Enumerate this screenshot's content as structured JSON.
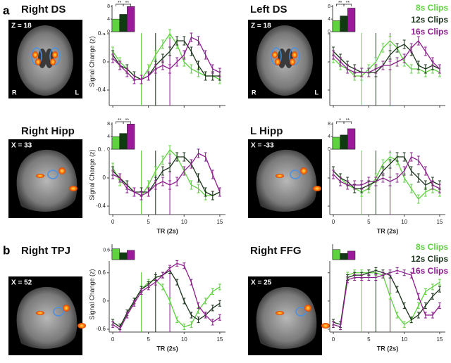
{
  "panel_labels": [
    "a",
    "b"
  ],
  "chart_data": [
    {
      "type": "line",
      "title": "Right DS",
      "slice_label": "Z = 18",
      "orientation": [
        "R",
        "L"
      ],
      "ylabel": "Signal Change (z)",
      "x": [
        0,
        1,
        2,
        3,
        4,
        5,
        6,
        7,
        8,
        9,
        10,
        11,
        12,
        13,
        14,
        15
      ],
      "xlim": [
        -0.5,
        15.8
      ],
      "xticks": [
        0,
        5,
        10,
        15
      ],
      "xtick_labels": false,
      "ylim": [
        -0.62,
        0.83
      ],
      "yticks": [
        -0.4,
        0,
        0.4
      ],
      "ytick_labels": true,
      "event_lines": [
        4,
        6,
        8
      ],
      "series": [
        {
          "color": "#5fd23f",
          "values": [
            0.15,
            0.0,
            -0.1,
            -0.2,
            -0.25,
            -0.1,
            0.1,
            0.25,
            0.4,
            0.25,
            0.0,
            -0.1,
            -0.15,
            -0.2,
            -0.2,
            -0.25
          ],
          "errors": [
            0.06,
            0.06,
            0.06,
            0.06,
            0.06,
            0.06,
            0.06,
            0.06,
            0.06,
            0.06,
            0.06,
            0.06,
            0.06,
            0.06,
            0.06,
            0.06
          ]
        },
        {
          "color": "#1c331c",
          "values": [
            0.1,
            -0.05,
            -0.1,
            -0.2,
            -0.25,
            -0.2,
            -0.05,
            0.05,
            0.15,
            0.3,
            0.3,
            0.15,
            -0.05,
            -0.2,
            -0.2,
            -0.2
          ],
          "errors": [
            0.06,
            0.06,
            0.06,
            0.06,
            0.06,
            0.06,
            0.06,
            0.06,
            0.06,
            0.06,
            0.06,
            0.06,
            0.06,
            0.06,
            0.06,
            0.06
          ]
        },
        {
          "color": "#8e1d8e",
          "values": [
            0.05,
            -0.05,
            -0.15,
            -0.25,
            -0.25,
            -0.2,
            -0.1,
            -0.05,
            -0.1,
            0.0,
            0.1,
            0.35,
            0.3,
            0.1,
            -0.1,
            -0.15
          ],
          "errors": [
            0.06,
            0.06,
            0.06,
            0.06,
            0.06,
            0.06,
            0.06,
            0.06,
            0.06,
            0.06,
            0.06,
            0.06,
            0.06,
            0.06,
            0.06,
            0.06
          ]
        }
      ],
      "inset": {
        "type": "bar",
        "values": [
          4,
          5.5,
          8
        ],
        "colors": [
          "#5fd23f",
          "#123a12",
          "#9a1a9a"
        ],
        "ylim": [
          0,
          8.5
        ],
        "yticks": [
          0,
          4,
          8
        ],
        "significance": [
          "**",
          "**"
        ]
      }
    },
    {
      "type": "line",
      "title": "Left DS",
      "slice_label": "Z = 18",
      "orientation": [
        "R",
        "L"
      ],
      "x": [
        0,
        1,
        2,
        3,
        4,
        5,
        6,
        7,
        8,
        9,
        10,
        11,
        12,
        13,
        14,
        15
      ],
      "xlim": [
        -0.5,
        15.8
      ],
      "xticks": [
        0,
        5,
        10,
        15
      ],
      "xtick_labels": false,
      "ylim": [
        -0.62,
        0.83
      ],
      "yticks": [
        -0.4,
        0,
        0.4
      ],
      "ytick_labels": false,
      "event_lines": [
        4,
        6,
        8
      ],
      "legend": "upper right",
      "series": [
        {
          "name": "8s Clips",
          "color": "#5fd23f",
          "values": [
            0.05,
            -0.05,
            -0.1,
            -0.2,
            -0.2,
            -0.1,
            0.0,
            0.2,
            0.3,
            0.2,
            0.0,
            -0.1,
            -0.1,
            -0.15,
            -0.1,
            -0.15
          ],
          "errors": [
            0.06,
            0.06,
            0.06,
            0.06,
            0.06,
            0.06,
            0.06,
            0.06,
            0.06,
            0.06,
            0.06,
            0.06,
            0.06,
            0.06,
            0.06,
            0.06
          ]
        },
        {
          "name": "12s Clips",
          "color": "#1c331c",
          "values": [
            0.15,
            0.05,
            -0.05,
            -0.1,
            -0.15,
            -0.15,
            -0.15,
            -0.05,
            0.1,
            0.2,
            0.25,
            0.15,
            -0.05,
            -0.1,
            -0.05,
            -0.1
          ],
          "errors": [
            0.06,
            0.06,
            0.06,
            0.06,
            0.06,
            0.06,
            0.06,
            0.06,
            0.06,
            0.06,
            0.06,
            0.06,
            0.06,
            0.06,
            0.06,
            0.06
          ]
        },
        {
          "name": "16s Clips",
          "color": "#8e1d8e",
          "values": [
            0.1,
            0.0,
            -0.1,
            -0.15,
            -0.15,
            -0.15,
            -0.1,
            -0.05,
            -0.05,
            0.0,
            0.05,
            0.2,
            0.3,
            0.15,
            0.0,
            -0.1
          ],
          "errors": [
            0.06,
            0.06,
            0.06,
            0.06,
            0.06,
            0.06,
            0.06,
            0.06,
            0.06,
            0.06,
            0.06,
            0.06,
            0.06,
            0.06,
            0.06,
            0.06
          ]
        }
      ],
      "inset": {
        "type": "bar",
        "values": [
          3.5,
          5,
          7.5
        ],
        "colors": [
          "#5fd23f",
          "#123a12",
          "#9a1a9a"
        ],
        "ylim": [
          0,
          8.5
        ],
        "yticks": [
          0,
          4,
          8
        ],
        "significance": [
          "**",
          "**"
        ]
      }
    },
    {
      "type": "line",
      "title": "Right Hipp",
      "slice_label": "X = 33",
      "ylabel": "Signal Change (z)",
      "xlabel": "TR (2s)",
      "x": [
        0,
        1,
        2,
        3,
        4,
        5,
        6,
        7,
        8,
        9,
        10,
        11,
        12,
        13,
        14,
        15
      ],
      "xlim": [
        -0.5,
        15.8
      ],
      "xticks": [
        0,
        5,
        10,
        15
      ],
      "xtick_labels": true,
      "ylim": [
        -0.52,
        0.81
      ],
      "yticks": [
        -0.4,
        0,
        0.4
      ],
      "ytick_labels": true,
      "event_lines": [
        4,
        6,
        8
      ],
      "series": [
        {
          "color": "#5fd23f",
          "values": [
            0.15,
            -0.05,
            -0.1,
            -0.2,
            -0.25,
            -0.1,
            0.1,
            0.25,
            0.4,
            0.3,
            0.1,
            -0.1,
            -0.15,
            -0.25,
            -0.25,
            -0.2
          ],
          "errors": [
            0.06,
            0.06,
            0.06,
            0.06,
            0.06,
            0.06,
            0.06,
            0.06,
            0.06,
            0.06,
            0.06,
            0.06,
            0.06,
            0.06,
            0.06,
            0.06
          ]
        },
        {
          "color": "#1c331c",
          "values": [
            0.1,
            0.0,
            -0.1,
            -0.2,
            -0.2,
            -0.2,
            -0.05,
            0.1,
            0.15,
            0.3,
            0.3,
            0.2,
            0.0,
            -0.2,
            -0.25,
            -0.2
          ],
          "errors": [
            0.06,
            0.06,
            0.06,
            0.06,
            0.06,
            0.06,
            0.06,
            0.06,
            0.06,
            0.06,
            0.06,
            0.06,
            0.06,
            0.06,
            0.06,
            0.06
          ]
        },
        {
          "color": "#8e1d8e",
          "values": [
            0.05,
            0.0,
            -0.15,
            -0.2,
            -0.25,
            -0.2,
            -0.1,
            -0.05,
            -0.1,
            -0.05,
            0.1,
            0.2,
            0.35,
            0.3,
            0.05,
            -0.2
          ],
          "errors": [
            0.06,
            0.06,
            0.06,
            0.06,
            0.06,
            0.06,
            0.06,
            0.06,
            0.06,
            0.06,
            0.06,
            0.06,
            0.06,
            0.06,
            0.06,
            0.06
          ]
        }
      ],
      "inset": {
        "type": "bar",
        "values": [
          4,
          5,
          8
        ],
        "colors": [
          "#5fd23f",
          "#123a12",
          "#9a1a9a"
        ],
        "ylim": [
          0,
          8.5
        ],
        "yticks": [
          0,
          4,
          8
        ],
        "significance": [
          "**",
          "**"
        ]
      }
    },
    {
      "type": "line",
      "title": "L Hipp",
      "slice_label": "X = -33",
      "xlabel": "TR (2s)",
      "x": [
        0,
        1,
        2,
        3,
        4,
        5,
        6,
        7,
        8,
        9,
        10,
        11,
        12,
        13,
        14,
        15
      ],
      "xlim": [
        -0.5,
        15.8
      ],
      "xticks": [
        0,
        5,
        10,
        15
      ],
      "xtick_labels": true,
      "ylim": [
        -0.52,
        0.81
      ],
      "yticks": [
        -0.4,
        0,
        0.4
      ],
      "ytick_labels": false,
      "event_lines": [
        4,
        6,
        8
      ],
      "series": [
        {
          "color": "#5fd23f",
          "values": [
            0.1,
            0.0,
            -0.1,
            -0.15,
            -0.2,
            -0.15,
            0.0,
            0.2,
            0.3,
            0.25,
            0.0,
            -0.15,
            -0.3,
            -0.2,
            -0.15,
            -0.2
          ],
          "errors": [
            0.06,
            0.06,
            0.06,
            0.06,
            0.06,
            0.06,
            0.06,
            0.06,
            0.06,
            0.06,
            0.06,
            0.06,
            0.06,
            0.06,
            0.06,
            0.06
          ]
        },
        {
          "color": "#1c331c",
          "values": [
            0.1,
            0.0,
            -0.05,
            -0.15,
            -0.15,
            -0.1,
            -0.05,
            0.1,
            0.2,
            0.3,
            0.3,
            0.1,
            0.0,
            -0.1,
            -0.05,
            -0.1
          ],
          "errors": [
            0.06,
            0.06,
            0.06,
            0.06,
            0.06,
            0.06,
            0.06,
            0.06,
            0.06,
            0.06,
            0.06,
            0.06,
            0.06,
            0.06,
            0.06,
            0.06
          ]
        },
        {
          "color": "#8e1d8e",
          "values": [
            0.05,
            -0.05,
            -0.1,
            -0.1,
            -0.1,
            -0.05,
            -0.05,
            0.0,
            -0.05,
            0.0,
            0.1,
            0.3,
            0.25,
            0.1,
            -0.1,
            -0.15
          ],
          "errors": [
            0.06,
            0.06,
            0.06,
            0.06,
            0.06,
            0.06,
            0.06,
            0.06,
            0.06,
            0.06,
            0.06,
            0.06,
            0.06,
            0.06,
            0.06,
            0.06
          ]
        }
      ],
      "inset": {
        "type": "bar",
        "values": [
          3.8,
          4.5,
          6.5
        ],
        "colors": [
          "#5fd23f",
          "#123a12",
          "#9a1a9a"
        ],
        "ylim": [
          0,
          8.5
        ],
        "yticks": [
          0,
          4,
          8
        ],
        "significance": [
          "*",
          "**"
        ]
      }
    },
    {
      "type": "line",
      "title": "Right TPJ",
      "slice_label": "X = 52",
      "ylabel": "Signal Change (z)",
      "xlabel": "TR (2s)",
      "x": [
        0,
        1,
        2,
        3,
        4,
        5,
        6,
        7,
        8,
        9,
        10,
        11,
        12,
        13,
        14,
        15
      ],
      "xlim": [
        -0.5,
        15.8
      ],
      "xticks": [
        0,
        5,
        10,
        15
      ],
      "xtick_labels": true,
      "ylim": [
        -0.66,
        1.24
      ],
      "yticks": [
        -0.6,
        0,
        0.6
      ],
      "ytick_labels": true,
      "event_lines": [
        4,
        6,
        8
      ],
      "series": [
        {
          "color": "#5fd23f",
          "values": [
            -0.45,
            -0.55,
            -0.3,
            0.0,
            0.25,
            0.4,
            0.45,
            0.3,
            0.0,
            -0.4,
            -0.55,
            -0.5,
            -0.2,
            0.0,
            0.2,
            0.3
          ],
          "errors": [
            0.06,
            0.06,
            0.06,
            0.06,
            0.06,
            0.06,
            0.06,
            0.06,
            0.06,
            0.06,
            0.06,
            0.06,
            0.06,
            0.06,
            0.06,
            0.06
          ]
        },
        {
          "color": "#1c331c",
          "values": [
            -0.45,
            -0.55,
            -0.25,
            0.0,
            0.25,
            0.35,
            0.5,
            0.55,
            0.65,
            0.4,
            0.0,
            -0.3,
            -0.4,
            -0.3,
            -0.15,
            -0.05
          ],
          "errors": [
            0.06,
            0.06,
            0.06,
            0.06,
            0.06,
            0.06,
            0.06,
            0.06,
            0.06,
            0.06,
            0.06,
            0.06,
            0.06,
            0.06,
            0.06,
            0.06
          ]
        },
        {
          "color": "#8e1d8e",
          "values": [
            -0.5,
            -0.6,
            -0.3,
            -0.05,
            0.2,
            0.3,
            0.4,
            0.55,
            0.7,
            0.8,
            0.75,
            0.4,
            -0.1,
            -0.3,
            -0.45,
            -0.35
          ],
          "errors": [
            0.06,
            0.06,
            0.06,
            0.06,
            0.06,
            0.06,
            0.06,
            0.06,
            0.06,
            0.06,
            0.06,
            0.06,
            0.06,
            0.06,
            0.06,
            0.06
          ]
        }
      ],
      "inset": {
        "type": "bar",
        "values": [
          0.7,
          0.45,
          0.6
        ],
        "colors": [
          "#5fd23f",
          "#123a12",
          "#9a1a9a"
        ],
        "ylim": [
          0,
          1.0
        ],
        "yticks": [
          0.6
        ]
      }
    },
    {
      "type": "line",
      "title": "Right FFG",
      "slice_label": "X = 25",
      "xlabel": "TR (2s)",
      "x": [
        0,
        1,
        2,
        3,
        4,
        5,
        6,
        7,
        8,
        9,
        10,
        11,
        12,
        13,
        14,
        15
      ],
      "xlim": [
        -0.5,
        15.8
      ],
      "xticks": [
        0,
        5,
        10,
        15
      ],
      "xtick_labels": true,
      "ylim": [
        -0.66,
        1.24
      ],
      "yticks": [
        -0.6,
        0,
        0.6
      ],
      "ytick_labels": false,
      "event_lines": [
        4,
        6,
        8
      ],
      "legend": "upper right",
      "series": [
        {
          "name": "8s Clips",
          "color": "#5fd23f",
          "values": [
            -0.5,
            -0.55,
            0.55,
            0.6,
            0.6,
            0.6,
            0.6,
            0.55,
            0.1,
            -0.3,
            -0.5,
            -0.4,
            -0.1,
            0.2,
            0.3,
            0.4
          ],
          "errors": [
            0.06,
            0.06,
            0.06,
            0.06,
            0.06,
            0.06,
            0.06,
            0.06,
            0.06,
            0.06,
            0.06,
            0.06,
            0.06,
            0.06,
            0.06,
            0.06
          ]
        },
        {
          "name": "12s Clips",
          "color": "#1c331c",
          "values": [
            -0.45,
            -0.5,
            0.5,
            0.55,
            0.55,
            0.6,
            0.65,
            0.6,
            0.55,
            0.25,
            -0.1,
            -0.4,
            -0.3,
            -0.1,
            0.1,
            0.25
          ],
          "errors": [
            0.06,
            0.06,
            0.06,
            0.06,
            0.06,
            0.06,
            0.06,
            0.06,
            0.06,
            0.06,
            0.06,
            0.06,
            0.06,
            0.06,
            0.06,
            0.06
          ]
        },
        {
          "name": "16s Clips",
          "color": "#8e1d8e",
          "values": [
            -0.5,
            -0.55,
            0.45,
            0.5,
            0.5,
            0.5,
            0.5,
            0.55,
            0.6,
            0.65,
            0.6,
            0.55,
            0.1,
            -0.3,
            -0.3,
            -0.1
          ],
          "errors": [
            0.06,
            0.06,
            0.06,
            0.06,
            0.06,
            0.06,
            0.06,
            0.06,
            0.06,
            0.06,
            0.06,
            0.06,
            0.06,
            0.06,
            0.06,
            0.06
          ]
        }
      ],
      "inset": {
        "type": "bar",
        "values": [
          0.65,
          0.4,
          0.55
        ],
        "colors": [
          "#5fd23f",
          "#123a12",
          "#9a1a9a"
        ],
        "ylim": [
          0,
          1.0
        ]
      }
    }
  ]
}
